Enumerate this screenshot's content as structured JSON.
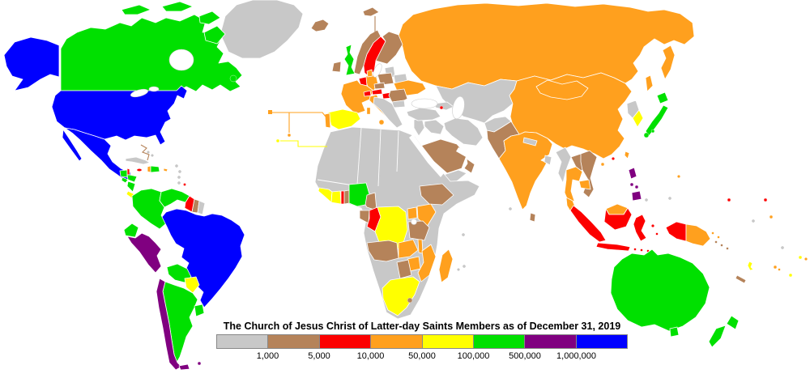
{
  "map": {
    "legend": {
      "title": "The Church of Jesus Christ of Latter-day Saints Members as of December 31, 2019",
      "boundary_labels": [
        "1,000",
        "5,000",
        "10,000",
        "50,000",
        "100,000",
        "500,000",
        "1,000,000"
      ],
      "buckets": [
        {
          "id": "under-1000",
          "color": "#c8c8c8"
        },
        {
          "id": "1000-5000",
          "color": "#b5835a"
        },
        {
          "id": "5000-10000",
          "color": "#fc0000"
        },
        {
          "id": "10000-50000",
          "color": "#ffa01e"
        },
        {
          "id": "50000-100000",
          "color": "#ffff00"
        },
        {
          "id": "100000-500000",
          "color": "#00e000"
        },
        {
          "id": "500000-1000000",
          "color": "#800080"
        },
        {
          "id": "over-1000000",
          "color": "#0000ff"
        }
      ]
    },
    "regions": {
      "greenland": "under-1000",
      "canada": "100000-500000",
      "united-states": "over-1000000",
      "mexico": "over-1000000",
      "guatemala": "100000-500000",
      "belize": "5000-10000",
      "honduras": "100000-500000",
      "el-salvador": "100000-500000",
      "nicaragua": "100000-500000",
      "costa-rica": "50000-100000",
      "panama": "50000-100000",
      "cuba": "under-1000",
      "bahamas": "under-1000",
      "jamaica": "5000-10000",
      "haiti": "10000-50000",
      "dominican-republic": "100000-500000",
      "puerto-rico": "10000-50000",
      "caribbean-islands-gray": "under-1000",
      "caribbean-islands-brown": "1000-5000",
      "caribbean-island-red": "5000-10000",
      "trinidad-and-tobago": "1000-5000",
      "colombia": "100000-500000",
      "venezuela": "100000-500000",
      "guyana": "5000-10000",
      "suriname": "1000-5000",
      "french-guiana": "under-1000",
      "ecuador": "100000-500000",
      "peru": "500000-1000000",
      "brazil": "over-1000000",
      "bolivia": "100000-500000",
      "paraguay": "50000-100000",
      "chile": "500000-1000000",
      "argentina": "100000-500000",
      "uruguay": "100000-500000",
      "falkland-islands": "500000-1000000",
      "iceland": "1000-5000",
      "ireland": "1000-5000",
      "united-kingdom": "100000-500000",
      "norway": "1000-5000",
      "svalbard": "1000-5000",
      "sweden": "5000-10000",
      "finland": "1000-5000",
      "denmark": "10000-50000",
      "netherlands-belgium": "5000-10000",
      "germany": "10000-50000",
      "france": "10000-50000",
      "spain": "50000-100000",
      "portugal": "10000-50000",
      "azores-madeira": "10000-50000",
      "canary-islands": "50000-100000",
      "italy": "10000-50000",
      "switzerland": "5000-10000",
      "austria": "5000-10000",
      "czechia": "1000-5000",
      "poland": "1000-5000",
      "hungary": "5000-10000",
      "romania": "1000-5000",
      "bulgaria": "under-1000",
      "balkans": "under-1000",
      "baltic-states": "under-1000",
      "belarus": "under-1000",
      "ukraine": "10000-50000",
      "russia": "10000-50000",
      "georgia-azerbaijan": "under-1000",
      "armenia": "5000-10000",
      "turkey": "under-1000",
      "levant": "under-1000",
      "iraq": "under-1000",
      "iran": "under-1000",
      "saudi-arabia": "1000-5000",
      "yemen": "under-1000",
      "oman": "1000-5000",
      "africa-gray-countries": "under-1000",
      "cote-divoire": "50000-100000",
      "ghana": "50000-100000",
      "togo": "5000-10000",
      "benin": "1000-5000",
      "nigeria": "100000-500000",
      "cameroon": "1000-5000",
      "gabon": "1000-5000",
      "congo": "5000-10000",
      "drc": "50000-100000",
      "uganda": "10000-50000",
      "kenya": "10000-50000",
      "ethiopia": "1000-5000",
      "tanzania": "1000-5000",
      "angola": "1000-5000",
      "zambia": "10000-50000",
      "malawi": "10000-50000",
      "mozambique": "10000-50000",
      "zimbabwe": "10000-50000",
      "botswana": "1000-5000",
      "south-africa": "50000-100000",
      "lesotho": "1000-5000",
      "madagascar": "10000-50000",
      "indian-ocean-islands-gray": "under-1000",
      "central-asia": "under-1000",
      "afghanistan": "under-1000",
      "pakistan": "1000-5000",
      "india": "10000-50000",
      "nepal": "under-1000",
      "bangladesh": "under-1000",
      "sri-lanka": "1000-5000",
      "myanmar": "under-1000",
      "thailand": "10000-50000",
      "laos": "1000-5000",
      "vietnam": "1000-5000",
      "cambodia": "10000-50000",
      "malaysia": "10000-50000",
      "china": "10000-50000",
      "mongolia": "10000-50000",
      "north-korea": "under-1000",
      "south-korea": "50000-100000",
      "japan": "100000-500000",
      "taiwan": "10000-50000",
      "hong-kong": "5000-10000",
      "philippines": "500000-1000000",
      "indonesia": "5000-10000",
      "papua-new-guinea": "10000-50000",
      "maldives": "under-1000",
      "palau": "under-1000",
      "australia": "100000-500000",
      "new-zealand": "100000-500000",
      "new-caledonia": "1000-5000",
      "vanuatu": "50000-100000",
      "fiji": "10000-50000",
      "solomon-islands": "1000-5000",
      "samoa": "50000-100000",
      "tonga": "50000-100000",
      "guam": "10000-50000",
      "marshall-islands": "5000-10000",
      "kiribati": "5000-10000",
      "pacific-islands-orange": "10000-50000",
      "pacific-islands-gray": "under-1000"
    }
  }
}
